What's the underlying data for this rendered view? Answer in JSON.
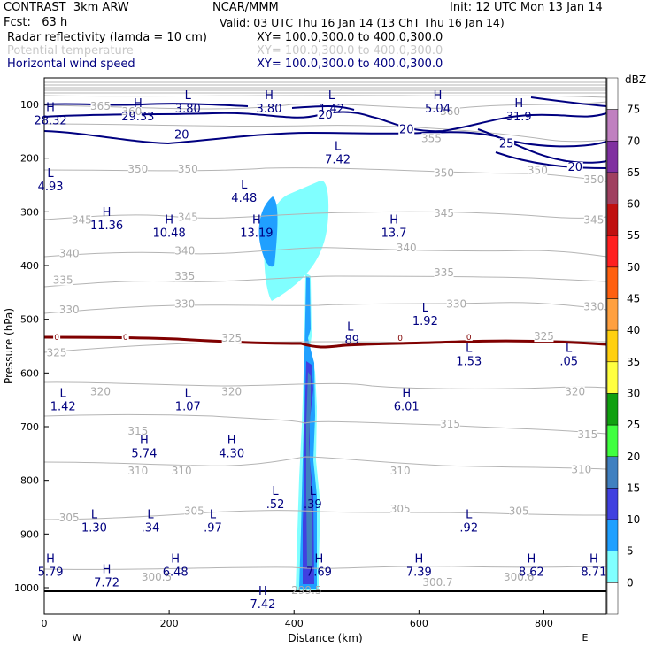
{
  "header": {
    "model": "CONTRAST  3km ARW",
    "center": "NCAR/MMM",
    "init": "Init: 12 UTC Mon 13 Jan 14",
    "fcst": "Fcst:   63 h",
    "valid": "Valid: 03 UTC Thu 16 Jan 14 (13 ChT Thu 16 Jan 14)",
    "field1": "Radar reflectivity (lamda = 10 cm)",
    "field1_xy": "XY= 100.0,300.0 to 400.0,300.0",
    "field2": "Potential temperature",
    "field2_xy": "XY= 100.0,300.0 to 400.0,300.0",
    "field3": "Horizontal wind speed",
    "field3_xy": "XY= 100.0,300.0 to 400.0,300.0"
  },
  "colors": {
    "wind": "#000080",
    "theta": "#aaaaaa",
    "zero_line": "#800000"
  },
  "chart_data": {
    "type": "heatmap",
    "title": "Radar reflectivity, potential temperature and horizontal wind speed cross-section",
    "xlabel": "Distance (km)",
    "ylabel": "Pressure (hPa)",
    "xlim": [
      0,
      900
    ],
    "ylim": [
      1050,
      60
    ],
    "x_ticks": [
      "0",
      "200",
      "400",
      "600",
      "800"
    ],
    "y_ticks": [
      "100",
      "200",
      "300",
      "400",
      "500",
      "600",
      "700",
      "800",
      "900",
      "1000"
    ],
    "x_end_labels": {
      "left": "W",
      "right": "E"
    },
    "colorbar": {
      "unit": "dBZ",
      "levels": [
        "75",
        "70",
        "65",
        "60",
        "55",
        "50",
        "45",
        "40",
        "35",
        "30",
        "25",
        "20",
        "15",
        "10",
        "5",
        "0"
      ],
      "colors": [
        "#ffffff",
        "#c080c0",
        "#8030a0",
        "#a04060",
        "#c01010",
        "#ff2020",
        "#ff6010",
        "#ffa040",
        "#ffd010",
        "#ffff40",
        "#10a010",
        "#40ff40",
        "#4080c0",
        "#4040e0",
        "#20a0ff",
        "#80ffff",
        "#ffffff"
      ]
    },
    "theta_labels": [
      {
        "x": 140,
        "p": 118,
        "text": "360"
      },
      {
        "x": 650,
        "p": 118,
        "text": "360"
      },
      {
        "x": 90,
        "p": 108,
        "text": "365"
      },
      {
        "x": 620,
        "p": 168,
        "text": "355"
      },
      {
        "x": 790,
        "p": 228,
        "text": "350"
      },
      {
        "x": 150,
        "p": 225,
        "text": "350"
      },
      {
        "x": 230,
        "p": 225,
        "text": "350"
      },
      {
        "x": 640,
        "p": 233,
        "text": "350"
      },
      {
        "x": 880,
        "p": 245,
        "text": "350"
      },
      {
        "x": 60,
        "p": 320,
        "text": "345"
      },
      {
        "x": 230,
        "p": 315,
        "text": "345"
      },
      {
        "x": 640,
        "p": 308,
        "text": "345"
      },
      {
        "x": 880,
        "p": 320,
        "text": "345"
      },
      {
        "x": 40,
        "p": 383,
        "text": "340"
      },
      {
        "x": 225,
        "p": 378,
        "text": "340"
      },
      {
        "x": 580,
        "p": 372,
        "text": "340"
      },
      {
        "x": 30,
        "p": 432,
        "text": "335"
      },
      {
        "x": 225,
        "p": 425,
        "text": "335"
      },
      {
        "x": 640,
        "p": 418,
        "text": "335"
      },
      {
        "x": 40,
        "p": 487,
        "text": "330"
      },
      {
        "x": 225,
        "p": 477,
        "text": "330"
      },
      {
        "x": 660,
        "p": 477,
        "text": "330"
      },
      {
        "x": 880,
        "p": 482,
        "text": "330"
      },
      {
        "x": 20,
        "p": 567,
        "text": "325"
      },
      {
        "x": 300,
        "p": 540,
        "text": "325"
      },
      {
        "x": 800,
        "p": 537,
        "text": "325"
      },
      {
        "x": 90,
        "p": 640,
        "text": "320"
      },
      {
        "x": 300,
        "p": 640,
        "text": "320"
      },
      {
        "x": 850,
        "p": 640,
        "text": "320"
      },
      {
        "x": 150,
        "p": 713,
        "text": "315"
      },
      {
        "x": 650,
        "p": 700,
        "text": "315"
      },
      {
        "x": 870,
        "p": 720,
        "text": "315"
      },
      {
        "x": 150,
        "p": 787,
        "text": "310"
      },
      {
        "x": 220,
        "p": 787,
        "text": "310"
      },
      {
        "x": 570,
        "p": 787,
        "text": "310"
      },
      {
        "x": 860,
        "p": 785,
        "text": "310"
      },
      {
        "x": 240,
        "p": 862,
        "text": "305"
      },
      {
        "x": 40,
        "p": 875,
        "text": "305"
      },
      {
        "x": 570,
        "p": 858,
        "text": "305"
      },
      {
        "x": 760,
        "p": 862,
        "text": "305"
      }
    ],
    "theta_surface_labels": [
      {
        "x": 180,
        "p": 985,
        "text": "300.5"
      },
      {
        "x": 420,
        "p": 1010,
        "text": "299.5"
      },
      {
        "x": 630,
        "p": 995,
        "text": "300.7"
      },
      {
        "x": 760,
        "p": 985,
        "text": "300.6"
      }
    ],
    "wind_contour_labels": [
      {
        "x": 220,
        "p": 162,
        "text": "20"
      },
      {
        "x": 450,
        "p": 125,
        "text": "20"
      },
      {
        "x": 580,
        "p": 152,
        "text": "20"
      },
      {
        "x": 740,
        "p": 178,
        "text": "25"
      },
      {
        "x": 850,
        "p": 222,
        "text": "20"
      }
    ],
    "extrema": [
      {
        "x": 230,
        "p": 90,
        "kind": "L",
        "value": "3.80"
      },
      {
        "x": 360,
        "p": 90,
        "kind": "H",
        "value": "3.80"
      },
      {
        "x": 460,
        "p": 90,
        "kind": "L",
        "value": "1.42"
      },
      {
        "x": 630,
        "p": 90,
        "kind": "H",
        "value": "5.04"
      },
      {
        "x": 10,
        "p": 112,
        "kind": "H",
        "value": "28.32"
      },
      {
        "x": 150,
        "p": 105,
        "kind": "H",
        "value": "29.33"
      },
      {
        "x": 760,
        "p": 105,
        "kind": "H",
        "value": "31.9"
      },
      {
        "x": 470,
        "p": 185,
        "kind": "L",
        "value": "7.42"
      },
      {
        "x": 10,
        "p": 235,
        "kind": "L",
        "value": "4.93"
      },
      {
        "x": 320,
        "p": 257,
        "kind": "L",
        "value": "4.48"
      },
      {
        "x": 100,
        "p": 308,
        "kind": "H",
        "value": "11.36"
      },
      {
        "x": 200,
        "p": 322,
        "kind": "H",
        "value": "10.48"
      },
      {
        "x": 340,
        "p": 322,
        "kind": "H",
        "value": "13.19"
      },
      {
        "x": 560,
        "p": 322,
        "kind": "H",
        "value": "13.7"
      },
      {
        "x": 610,
        "p": 486,
        "kind": "L",
        "value": "1.92"
      },
      {
        "x": 490,
        "p": 521,
        "kind": "L",
        "value": ".89"
      },
      {
        "x": 680,
        "p": 561,
        "kind": "L",
        "value": "1.53"
      },
      {
        "x": 840,
        "p": 561,
        "kind": "L",
        "value": ".05"
      },
      {
        "x": 30,
        "p": 645,
        "kind": "L",
        "value": "1.42"
      },
      {
        "x": 230,
        "p": 645,
        "kind": "L",
        "value": "1.07"
      },
      {
        "x": 580,
        "p": 645,
        "kind": "H",
        "value": "6.01"
      },
      {
        "x": 160,
        "p": 732,
        "kind": "H",
        "value": "5.74"
      },
      {
        "x": 300,
        "p": 732,
        "kind": "H",
        "value": "4.30"
      },
      {
        "x": 370,
        "p": 827,
        "kind": "L",
        "value": ".52"
      },
      {
        "x": 430,
        "p": 827,
        "kind": "L",
        "value": ".39"
      },
      {
        "x": 80,
        "p": 871,
        "kind": "L",
        "value": "1.30"
      },
      {
        "x": 170,
        "p": 871,
        "kind": "L",
        "value": ".34"
      },
      {
        "x": 270,
        "p": 871,
        "kind": "L",
        "value": ".97"
      },
      {
        "x": 680,
        "p": 871,
        "kind": "L",
        "value": ".92"
      },
      {
        "x": 10,
        "p": 953,
        "kind": "H",
        "value": "5.79"
      },
      {
        "x": 100,
        "p": 973,
        "kind": "H",
        "value": "7.72"
      },
      {
        "x": 210,
        "p": 953,
        "kind": "H",
        "value": "6.48"
      },
      {
        "x": 440,
        "p": 953,
        "kind": "H",
        "value": "7.69"
      },
      {
        "x": 600,
        "p": 953,
        "kind": "H",
        "value": "7.39"
      },
      {
        "x": 780,
        "p": 953,
        "kind": "H",
        "value": "8.62"
      },
      {
        "x": 880,
        "p": 953,
        "kind": "H",
        "value": "8.71"
      },
      {
        "x": 350,
        "p": 1013,
        "kind": "H",
        "value": "7.42"
      }
    ],
    "zero_contour_labels": [
      {
        "x": 20,
        "p": 535,
        "text": "0"
      },
      {
        "x": 130,
        "p": 535,
        "text": "0"
      },
      {
        "x": 570,
        "p": 537,
        "text": "0"
      },
      {
        "x": 680,
        "p": 535,
        "text": "0"
      }
    ]
  }
}
